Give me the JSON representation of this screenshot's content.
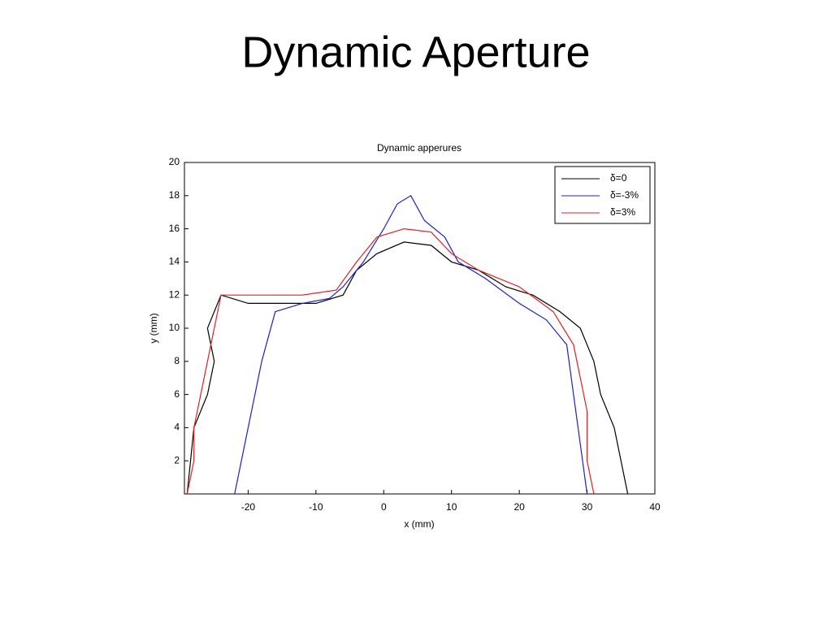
{
  "slide_title": "Dynamic Aperture",
  "chart_data": {
    "type": "line",
    "title": "Dynamic apperures",
    "xlabel": "x (mm)",
    "ylabel": "y (mm)",
    "xlim": [
      -29.4,
      40
    ],
    "ylim": [
      0,
      20
    ],
    "xticks": [
      -20,
      -10,
      0,
      10,
      20,
      30,
      40
    ],
    "yticks": [
      2,
      4,
      6,
      8,
      10,
      12,
      14,
      16,
      18,
      20
    ],
    "legend": "upper right",
    "series": [
      {
        "name": "δ=0",
        "color": "#000000",
        "x": [
          -29,
          -28,
          -26,
          -25,
          -26,
          -24,
          -20,
          -15,
          -10,
          -6,
          -4,
          -1,
          3,
          7,
          10,
          14,
          18,
          22,
          26,
          29,
          31,
          32,
          34,
          35,
          36
        ],
        "values": [
          0,
          4,
          6,
          8,
          10,
          12,
          11.5,
          11.5,
          11.5,
          12,
          13.5,
          14.5,
          15.2,
          15,
          14,
          13.5,
          12.5,
          12,
          11,
          10,
          8,
          6,
          4,
          2,
          0
        ]
      },
      {
        "name": "δ=-3%",
        "color": "#1f1fc8",
        "x": [
          -22,
          -21,
          -20,
          -19,
          -18,
          -17,
          -16,
          -12,
          -8,
          -6,
          -3,
          0,
          2,
          4,
          6,
          9,
          11,
          15,
          20,
          24,
          27,
          28,
          29,
          30
        ],
        "values": [
          0,
          2,
          4,
          6,
          8,
          9.5,
          11,
          11.5,
          11.8,
          12.5,
          14,
          16,
          17.5,
          18,
          16.5,
          15.5,
          14,
          13,
          11.5,
          10.5,
          9,
          6,
          3,
          0
        ]
      },
      {
        "name": "δ=3%",
        "color": "#e02020",
        "x": [
          -29,
          -28,
          -28,
          -27,
          -26,
          -25,
          -24,
          -18,
          -12,
          -7,
          -4,
          -1,
          3,
          7,
          10,
          14,
          20,
          25,
          28,
          29,
          30,
          30,
          31
        ],
        "values": [
          0,
          2,
          4,
          6,
          8,
          10,
          12,
          12,
          12,
          12.3,
          14,
          15.5,
          16,
          15.8,
          14.5,
          13.5,
          12.5,
          11,
          9,
          7,
          5,
          2,
          0
        ]
      }
    ]
  }
}
